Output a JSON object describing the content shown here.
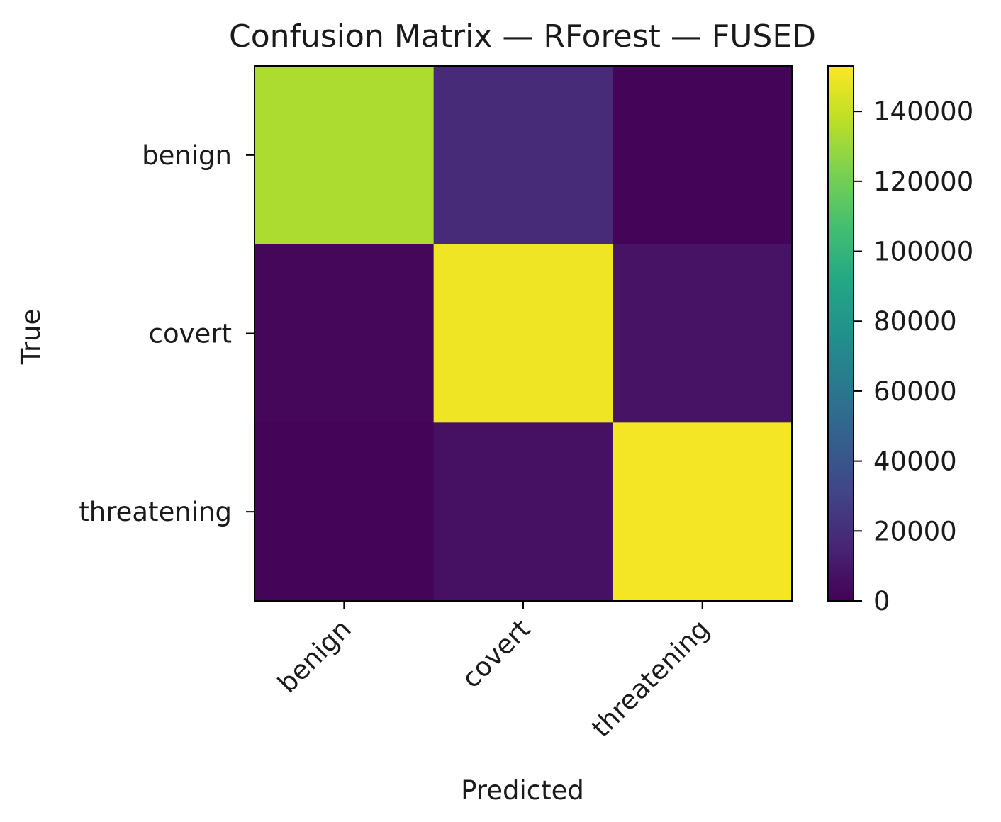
{
  "chart_data": {
    "type": "heatmap",
    "title": "Confusion Matrix — RForest — FUSED",
    "xlabel": "Predicted",
    "ylabel": "True",
    "x_categories": [
      "benign",
      "covert",
      "threatening"
    ],
    "y_categories": [
      "benign",
      "covert",
      "threatening"
    ],
    "values": [
      [
        134000,
        18000,
        1500
      ],
      [
        2500,
        150000,
        8000
      ],
      [
        1500,
        7000,
        151000
      ]
    ],
    "colorscale": "viridis",
    "colorbar": {
      "range": [
        0,
        153000
      ],
      "ticks": [
        0,
        20000,
        40000,
        60000,
        80000,
        100000,
        120000,
        140000
      ]
    }
  }
}
